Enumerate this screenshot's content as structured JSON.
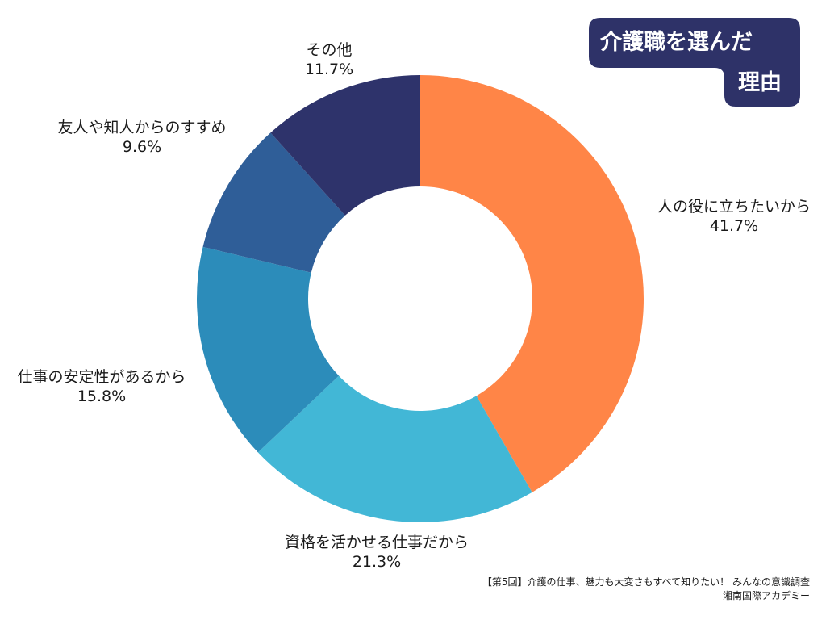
{
  "title": {
    "line1": "介護職を選んだ",
    "line2": "理由",
    "bg_color": "#2E3268"
  },
  "source": {
    "line1": "【第5回】介護の仕事、魅力も大変さもすべて知りたい！ みんなの意識調査",
    "line2": "湘南国際アカデミー"
  },
  "chart_data": {
    "type": "pie",
    "subtype": "donut",
    "title": "介護職を選んだ理由",
    "unit": "%",
    "start_angle_deg": 0,
    "direction": "clockwise",
    "legend": "none",
    "slices": [
      {
        "label": "人の役に立ちたいから",
        "value": 41.7,
        "display": "41.7%",
        "color": "#FF8547"
      },
      {
        "label": "資格を活かせる仕事だから",
        "value": 21.3,
        "display": "21.3%",
        "color": "#42B7D6"
      },
      {
        "label": "仕事の安定性があるから",
        "value": 15.8,
        "display": "15.8%",
        "color": "#2C8CBA"
      },
      {
        "label": "友人や知人からのすすめ",
        "value": 9.6,
        "display": "9.6%",
        "color": "#2F5E98"
      },
      {
        "label": "その他",
        "value": 11.7,
        "display": "11.7%",
        "color": "#2E336B"
      }
    ]
  }
}
